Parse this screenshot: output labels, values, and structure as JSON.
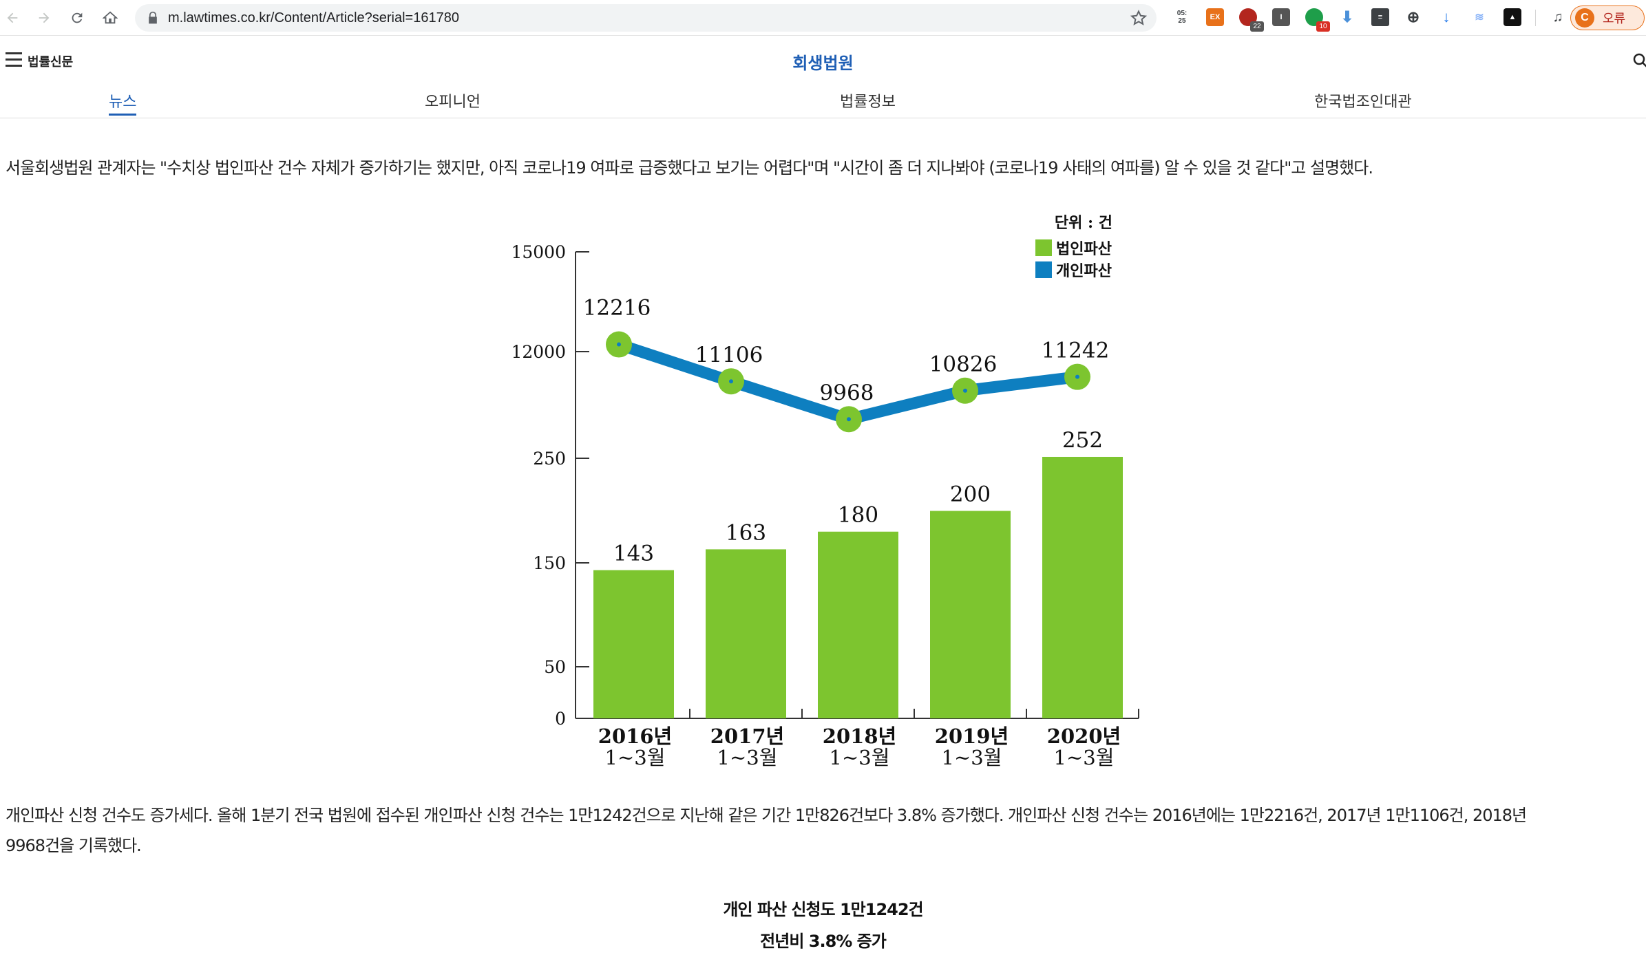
{
  "browser": {
    "url": "m.lawtimes.co.kr/Content/Article?serial=161780",
    "extensions": [
      {
        "name": "clock-extension",
        "label": "05:\n25"
      },
      {
        "name": "ex-extension",
        "label": "EX"
      },
      {
        "name": "red-extension",
        "badge": "22"
      },
      {
        "name": "dark-extension",
        "label": "I"
      },
      {
        "name": "green-extension",
        "badge": "10"
      }
    ],
    "profile_initial": "C",
    "profile_label": "오류"
  },
  "site": {
    "brand": "법률신문",
    "section_title": "회생법원",
    "tabs": [
      {
        "label": "뉴스",
        "active": true
      },
      {
        "label": "오피니언",
        "active": false
      },
      {
        "label": "법률정보",
        "active": false
      },
      {
        "label": "한국법조인대관",
        "active": false
      }
    ]
  },
  "article": {
    "paragraph1": "서울회생법원 관계자는 \"수치상 법인파산 건수 자체가 증가하기는 했지만, 아직 코로나19 여파로 급증했다고 보기는 어렵다\"며 \"시간이 좀 더 지나봐야 (코로나19 사태의 여파를) 알 수 있을 것 같다\"고 설명했다.",
    "paragraph2_line1": "개인파산 신청 건수도 증가세다. 올해 1분기 전국 법원에 접수된 개인파산 신청 건수는 1만1242건으로 지난해 같은 기간 1만826건보다 3.8% 증가했다. 개인파산 신청 건수는 2016년에는 1만2216건, 2017년 1만1106건, 2018년",
    "paragraph2_line2": "9968건을 기록했다.",
    "caption_line1": "개인 파산 신청도 1만1242건",
    "caption_line2": "전년비 3.8% 증가"
  },
  "chart_data": {
    "type": "bar+line",
    "unit_label": "단위 : 건",
    "categories": [
      [
        "2016년",
        "1~3월"
      ],
      [
        "2017년",
        "1~3월"
      ],
      [
        "2018년",
        "1~3월"
      ],
      [
        "2019년",
        "1~3월"
      ],
      [
        "2020년",
        "1~3월"
      ]
    ],
    "y_ticks": [
      "15000",
      "12000",
      "250",
      "150",
      "50",
      "0"
    ],
    "series": [
      {
        "name": "법인파산",
        "type": "bar",
        "color": "#7dc52f",
        "values": [
          143,
          163,
          180,
          200,
          252
        ]
      },
      {
        "name": "개인파산",
        "type": "line",
        "color": "#0e7fc0",
        "marker_color": "#7dc52f",
        "values": [
          12216,
          11106,
          9968,
          10826,
          11242
        ]
      }
    ],
    "axis_scale": "broken",
    "legend_position": "top-right"
  }
}
